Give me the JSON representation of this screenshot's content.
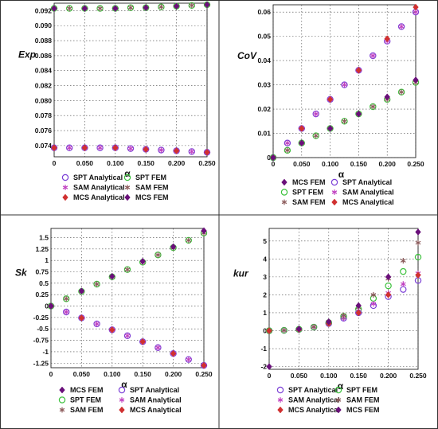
{
  "chart_data": [
    {
      "type": "scatter",
      "ylabel": "Exp",
      "xlabel": "α",
      "xlim": [
        0,
        0.25
      ],
      "ylim": [
        0.0725,
        0.093
      ],
      "xticks": [
        "0",
        "0.050",
        "0.100",
        "0.150",
        "0.200",
        "0.250"
      ],
      "yticks": [
        "0.074",
        "0.076",
        "0.078",
        "0.080",
        "0.082",
        "0.084",
        "0.086",
        "0.088",
        "0.090",
        "0.092"
      ],
      "grid": true,
      "legend": [
        {
          "label": "SPT Analytical",
          "marker": "circle",
          "color": "#7b3fd6"
        },
        {
          "label": "SPT FEM",
          "marker": "circle",
          "color": "#3cc13c"
        },
        {
          "label": "SAM Analytical",
          "marker": "star",
          "color": "#c040c0"
        },
        {
          "label": "SAM FEM",
          "marker": "star",
          "color": "#8b5a5a"
        },
        {
          "label": "MCS Analytical",
          "marker": "diamond",
          "color": "#d03030"
        },
        {
          "label": "MCS FEM",
          "marker": "diamond",
          "color": "#6a0f7a"
        }
      ],
      "series": [
        {
          "name": "SPT Analytical",
          "x": [
            0.0,
            0.025,
            0.05,
            0.075,
            0.1,
            0.125,
            0.15,
            0.175,
            0.2,
            0.225,
            0.25
          ],
          "y": [
            0.0737,
            0.0737,
            0.0737,
            0.0737,
            0.0737,
            0.0736,
            0.0735,
            0.0734,
            0.0733,
            0.0732,
            0.0731
          ]
        },
        {
          "name": "SPT FEM",
          "x": [
            0.0,
            0.025,
            0.05,
            0.075,
            0.1,
            0.125,
            0.15,
            0.175,
            0.2,
            0.225,
            0.25
          ],
          "y": [
            0.0923,
            0.0923,
            0.0923,
            0.0923,
            0.0923,
            0.0924,
            0.0924,
            0.0925,
            0.0926,
            0.0927,
            0.0928
          ]
        },
        {
          "name": "SAM Analytical",
          "x": [
            0.0,
            0.025,
            0.05,
            0.075,
            0.1,
            0.125,
            0.15,
            0.175,
            0.2,
            0.225,
            0.25
          ],
          "y": [
            0.0737,
            0.0737,
            0.0737,
            0.0737,
            0.0737,
            0.0736,
            0.0735,
            0.0734,
            0.0733,
            0.0732,
            0.0731
          ]
        },
        {
          "name": "SAM FEM",
          "x": [
            0.0,
            0.025,
            0.05,
            0.075,
            0.1,
            0.125,
            0.15,
            0.175,
            0.2,
            0.225,
            0.25
          ],
          "y": [
            0.0923,
            0.0923,
            0.0923,
            0.0923,
            0.0923,
            0.0924,
            0.0924,
            0.0925,
            0.0926,
            0.0927,
            0.0928
          ]
        },
        {
          "name": "MCS Analytical",
          "x": [
            0.0,
            0.05,
            0.1,
            0.15,
            0.2,
            0.25
          ],
          "y": [
            0.0737,
            0.0737,
            0.0737,
            0.0735,
            0.0733,
            0.0731
          ]
        },
        {
          "name": "MCS FEM",
          "x": [
            0.0,
            0.05,
            0.1,
            0.15,
            0.2,
            0.25
          ],
          "y": [
            0.0923,
            0.0923,
            0.0923,
            0.0924,
            0.0926,
            0.0928
          ]
        }
      ]
    },
    {
      "type": "scatter",
      "ylabel": "CoV",
      "xlabel": "α",
      "xlim": [
        0,
        0.25
      ],
      "ylim": [
        0,
        0.063
      ],
      "xticks": [
        "0",
        "0.050",
        "0.100",
        "0.150",
        "0.200",
        "0.250"
      ],
      "yticks": [
        "0",
        "0.01",
        "0.02",
        "0.03",
        "0.04",
        "0.05",
        "0.06"
      ],
      "grid": true,
      "legend": [
        {
          "label": "MCS FEM",
          "marker": "diamond",
          "color": "#6a0f7a"
        },
        {
          "label": "SPT Analytical",
          "marker": "circle",
          "color": "#7b3fd6"
        },
        {
          "label": "SPT FEM",
          "marker": "circle",
          "color": "#3cc13c"
        },
        {
          "label": "SAM Analytical",
          "marker": "star",
          "color": "#c040c0"
        },
        {
          "label": "SAM FEM",
          "marker": "star",
          "color": "#8b5a5a"
        },
        {
          "label": "MCS Analytical",
          "marker": "diamond",
          "color": "#d03030"
        }
      ],
      "series": [
        {
          "name": "SPT Analytical",
          "x": [
            0.0,
            0.025,
            0.05,
            0.075,
            0.1,
            0.125,
            0.15,
            0.175,
            0.2,
            0.225,
            0.25
          ],
          "y": [
            0.0,
            0.006,
            0.012,
            0.018,
            0.024,
            0.03,
            0.036,
            0.042,
            0.048,
            0.054,
            0.06
          ]
        },
        {
          "name": "SPT FEM",
          "x": [
            0.0,
            0.025,
            0.05,
            0.075,
            0.1,
            0.125,
            0.15,
            0.175,
            0.2,
            0.225,
            0.25
          ],
          "y": [
            0.0,
            0.003,
            0.006,
            0.009,
            0.012,
            0.015,
            0.018,
            0.021,
            0.024,
            0.027,
            0.031
          ]
        },
        {
          "name": "SAM Analytical",
          "x": [
            0.0,
            0.025,
            0.05,
            0.075,
            0.1,
            0.125,
            0.15,
            0.175,
            0.2,
            0.225,
            0.25
          ],
          "y": [
            0.0,
            0.006,
            0.012,
            0.018,
            0.024,
            0.03,
            0.036,
            0.042,
            0.048,
            0.054,
            0.06
          ]
        },
        {
          "name": "SAM FEM",
          "x": [
            0.0,
            0.025,
            0.05,
            0.075,
            0.1,
            0.125,
            0.15,
            0.175,
            0.2,
            0.225,
            0.25
          ],
          "y": [
            0.0,
            0.003,
            0.006,
            0.009,
            0.012,
            0.015,
            0.018,
            0.021,
            0.024,
            0.027,
            0.031
          ]
        },
        {
          "name": "MCS Analytical",
          "x": [
            0.0,
            0.05,
            0.1,
            0.15,
            0.2,
            0.25
          ],
          "y": [
            0.0,
            0.012,
            0.024,
            0.036,
            0.049,
            0.062
          ]
        },
        {
          "name": "MCS FEM",
          "x": [
            0.0,
            0.05,
            0.1,
            0.15,
            0.2,
            0.25
          ],
          "y": [
            0.0,
            0.006,
            0.012,
            0.018,
            0.025,
            0.032
          ]
        }
      ]
    },
    {
      "type": "scatter",
      "ylabel": "Sk",
      "xlabel": "α",
      "xlim": [
        0,
        0.25
      ],
      "ylim": [
        -1.35,
        1.7
      ],
      "xticks": [
        "0",
        "0.050",
        "0.100",
        "0.150",
        "0.200",
        "0.250"
      ],
      "yticks": [
        "-1.25",
        "-1",
        "-0.75",
        "-0.5",
        "-0.25",
        "0",
        "0.25",
        "0.5",
        "0.75",
        "1",
        "1.25",
        "1.5"
      ],
      "grid": true,
      "legend": [
        {
          "label": "MCS FEM",
          "marker": "diamond",
          "color": "#6a0f7a"
        },
        {
          "label": "SPT Analytical",
          "marker": "circle",
          "color": "#7b3fd6"
        },
        {
          "label": "SPT FEM",
          "marker": "circle",
          "color": "#3cc13c"
        },
        {
          "label": "SAM Analytical",
          "marker": "star",
          "color": "#c040c0"
        },
        {
          "label": "SAM FEM",
          "marker": "star",
          "color": "#8b5a5a"
        },
        {
          "label": "MCS Analytical",
          "marker": "diamond",
          "color": "#d03030"
        }
      ],
      "series": [
        {
          "name": "SPT Analytical",
          "x": [
            0.0,
            0.025,
            0.05,
            0.075,
            0.1,
            0.125,
            0.15,
            0.175,
            0.2,
            0.225,
            0.25
          ],
          "y": [
            0.0,
            -0.13,
            -0.26,
            -0.39,
            -0.52,
            -0.65,
            -0.78,
            -0.91,
            -1.04,
            -1.17,
            -1.3
          ]
        },
        {
          "name": "SPT FEM",
          "x": [
            0.0,
            0.025,
            0.05,
            0.075,
            0.1,
            0.125,
            0.15,
            0.175,
            0.2,
            0.225,
            0.25
          ],
          "y": [
            0.0,
            0.16,
            0.32,
            0.48,
            0.64,
            0.8,
            0.96,
            1.12,
            1.28,
            1.44,
            1.6
          ]
        },
        {
          "name": "SAM Analytical",
          "x": [
            0.0,
            0.025,
            0.05,
            0.075,
            0.1,
            0.125,
            0.15,
            0.175,
            0.2,
            0.225,
            0.25
          ],
          "y": [
            0.0,
            -0.13,
            -0.26,
            -0.39,
            -0.52,
            -0.65,
            -0.78,
            -0.91,
            -1.04,
            -1.17,
            -1.3
          ]
        },
        {
          "name": "SAM FEM",
          "x": [
            0.0,
            0.025,
            0.05,
            0.075,
            0.1,
            0.125,
            0.15,
            0.175,
            0.2,
            0.225,
            0.25
          ],
          "y": [
            0.0,
            0.16,
            0.32,
            0.48,
            0.64,
            0.8,
            0.96,
            1.12,
            1.28,
            1.44,
            1.6
          ]
        },
        {
          "name": "MCS Analytical",
          "x": [
            0.0,
            0.05,
            0.1,
            0.15,
            0.2,
            0.25
          ],
          "y": [
            0.0,
            -0.26,
            -0.52,
            -0.78,
            -1.04,
            -1.3
          ]
        },
        {
          "name": "MCS FEM",
          "x": [
            0.0,
            0.05,
            0.1,
            0.15,
            0.2,
            0.25
          ],
          "y": [
            0.0,
            0.33,
            0.65,
            0.98,
            1.3,
            1.65
          ]
        }
      ]
    },
    {
      "type": "scatter",
      "ylabel": "kur",
      "xlabel": "α",
      "xlim": [
        0,
        0.25
      ],
      "ylim": [
        -2.15,
        5.7
      ],
      "xticks": [
        "0",
        "0.050",
        "0.100",
        "0.150",
        "0.200",
        "0.250"
      ],
      "yticks": [
        "-2",
        "-1",
        "0",
        "1",
        "2",
        "3",
        "4",
        "5"
      ],
      "grid": true,
      "legend": [
        {
          "label": "SPT Analytical",
          "marker": "circle",
          "color": "#7b3fd6"
        },
        {
          "label": "SPT FEM",
          "marker": "circle",
          "color": "#3cc13c"
        },
        {
          "label": "SAM Analytical",
          "marker": "star",
          "color": "#c040c0"
        },
        {
          "label": "SAM FEM",
          "marker": "star",
          "color": "#8b5a5a"
        },
        {
          "label": "MCS Analytical",
          "marker": "diamond",
          "color": "#d03030"
        },
        {
          "label": "MCS FEM",
          "marker": "diamond",
          "color": "#6a0f7a"
        }
      ],
      "series": [
        {
          "name": "SPT Analytical",
          "x": [
            0.0,
            0.025,
            0.05,
            0.075,
            0.1,
            0.125,
            0.15,
            0.175,
            0.2,
            0.225,
            0.25
          ],
          "y": [
            0.0,
            0.02,
            0.07,
            0.2,
            0.4,
            0.7,
            1.0,
            1.4,
            1.9,
            2.3,
            2.8
          ]
        },
        {
          "name": "SPT FEM",
          "x": [
            0.0,
            0.025,
            0.05,
            0.075,
            0.1,
            0.125,
            0.15,
            0.175,
            0.2,
            0.225,
            0.25
          ],
          "y": [
            0.0,
            0.02,
            0.08,
            0.2,
            0.45,
            0.8,
            1.2,
            1.8,
            2.5,
            3.3,
            4.1
          ]
        },
        {
          "name": "SAM Analytical",
          "x": [
            0.0,
            0.025,
            0.05,
            0.075,
            0.1,
            0.125,
            0.15,
            0.175,
            0.2,
            0.225,
            0.25
          ],
          "y": [
            0.0,
            0.02,
            0.07,
            0.2,
            0.4,
            0.7,
            1.05,
            1.5,
            2.1,
            2.6,
            3.2
          ]
        },
        {
          "name": "SAM FEM",
          "x": [
            0.0,
            0.025,
            0.05,
            0.075,
            0.1,
            0.125,
            0.15,
            0.175,
            0.2,
            0.225,
            0.25
          ],
          "y": [
            0.0,
            0.02,
            0.08,
            0.22,
            0.5,
            0.85,
            1.3,
            2.0,
            2.9,
            3.9,
            4.9
          ]
        },
        {
          "name": "MCS Analytical",
          "x": [
            0.0,
            0.05,
            0.1,
            0.15,
            0.2,
            0.25
          ],
          "y": [
            0.0,
            0.07,
            0.4,
            1.0,
            2.0,
            3.1
          ]
        },
        {
          "name": "MCS FEM",
          "x": [
            0.0,
            0.05,
            0.1,
            0.15,
            0.2,
            0.25
          ],
          "y": [
            -2.0,
            0.1,
            0.5,
            1.4,
            3.0,
            5.5
          ]
        }
      ]
    }
  ]
}
